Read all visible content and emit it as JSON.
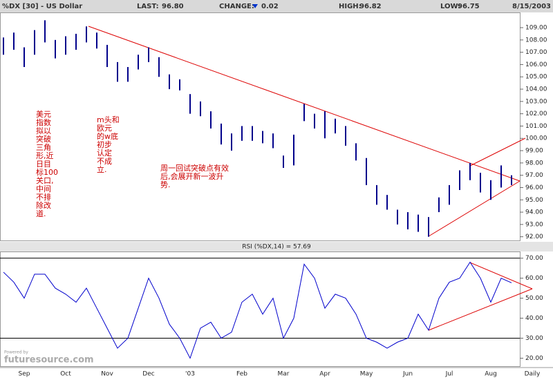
{
  "header": {
    "symbol": "%DX [30] - US Dollar",
    "last_label": "LAST:",
    "last": "96.80",
    "change_label": "CHANGE:",
    "change": "0.02",
    "high_label": "HIGH:",
    "high": "96.82",
    "low_label": "LOW:",
    "low": "96.75",
    "date": "8/15/2003"
  },
  "branding": {
    "powered": "Powered by",
    "name": "futuresource.com"
  },
  "chart_data": [
    {
      "type": "ohlc",
      "period": "Daily",
      "color": "#00008b",
      "trend_color": "#dd0000",
      "categories": [
        null,
        null,
        "Sep",
        null,
        null,
        null,
        "Oct",
        null,
        null,
        null,
        "Nov",
        null,
        null,
        null,
        "Dec",
        null,
        null,
        null,
        "'03",
        null,
        null,
        null,
        null,
        "Feb",
        null,
        null,
        null,
        "Mar",
        null,
        null,
        null,
        "Apr",
        null,
        null,
        null,
        "May",
        null,
        null,
        null,
        "Jun",
        null,
        null,
        null,
        "Jul",
        null,
        null,
        null,
        "Aug",
        null,
        null
      ],
      "series": [
        {
          "name": "High",
          "values": [
            108.2,
            108.6,
            107.4,
            108.8,
            109.6,
            108.0,
            108.3,
            108.5,
            109.1,
            108.6,
            107.6,
            106.2,
            105.8,
            106.8,
            107.4,
            106.6,
            105.2,
            104.8,
            103.6,
            103.0,
            102.2,
            101.2,
            100.4,
            101.0,
            101.0,
            100.6,
            100.4,
            98.6,
            100.3,
            102.8,
            102.0,
            102.2,
            101.6,
            101.0,
            99.6,
            98.4,
            96.2,
            95.4,
            94.2,
            94.0,
            93.8,
            93.6,
            95.2,
            96.2,
            97.4,
            98.0,
            97.2,
            96.6,
            97.8,
            97.0
          ]
        },
        {
          "name": "Low",
          "values": [
            106.8,
            107.2,
            105.8,
            106.8,
            107.8,
            106.5,
            106.8,
            107.2,
            107.8,
            107.3,
            105.8,
            104.6,
            104.6,
            105.6,
            106.2,
            105.0,
            104.0,
            103.9,
            102.0,
            101.8,
            100.8,
            99.5,
            99.0,
            99.8,
            99.8,
            99.6,
            99.2,
            97.6,
            97.8,
            101.4,
            100.8,
            100.0,
            100.4,
            99.4,
            98.2,
            96.2,
            94.6,
            94.2,
            93.0,
            92.6,
            92.4,
            92.0,
            94.0,
            94.6,
            95.8,
            96.6,
            95.6,
            95.0,
            96.0,
            96.2
          ]
        }
      ],
      "ylim": [
        91.7,
        109.9
      ],
      "yticks": [
        {
          "value": 92,
          "label": "92.00"
        },
        {
          "value": 93,
          "label": "93.00"
        },
        {
          "value": 94,
          "label": "94.00"
        },
        {
          "value": 95,
          "label": "95.00"
        },
        {
          "value": 96,
          "label": "96.00"
        },
        {
          "value": 97,
          "label": "97.00"
        },
        {
          "value": 98,
          "label": "98.00"
        },
        {
          "value": 99,
          "label": "99.00"
        },
        {
          "value": 100,
          "label": "100.00"
        },
        {
          "value": 101,
          "label": "101.00"
        },
        {
          "value": 102,
          "label": "102.00"
        },
        {
          "value": 103,
          "label": "103.00"
        },
        {
          "value": 104,
          "label": "104.00"
        },
        {
          "value": 105,
          "label": "105.00"
        },
        {
          "value": 106,
          "label": "106.00"
        },
        {
          "value": 107,
          "label": "107.00"
        },
        {
          "value": 108,
          "label": "108.00"
        },
        {
          "value": 109,
          "label": "109.00"
        }
      ],
      "annotations": [
        {
          "lines": [
            "美元",
            "指数",
            "拟以",
            "突破",
            "三角",
            "形,近",
            "日目",
            "标100",
            "关口,",
            "中间",
            "不排",
            "除改",
            "道."
          ]
        },
        {
          "lines": [
            "m头和",
            "欧元",
            "的w底",
            "初步",
            "认定",
            "不成",
            "立."
          ]
        },
        {
          "lines": [
            "周一回试突破点有效",
            "后,会展开新一波升",
            "势."
          ]
        }
      ]
    },
    {
      "type": "line",
      "title": "RSI (%DX,14) = 57.69",
      "color": "#0000cc",
      "values": [
        63,
        58,
        50,
        62,
        62,
        55,
        52,
        48,
        55,
        45,
        35,
        25,
        30,
        45,
        60,
        50,
        37,
        30,
        20,
        35,
        38,
        30,
        33,
        48,
        52,
        42,
        50,
        30,
        40,
        67,
        60,
        45,
        52,
        50,
        42,
        30,
        28,
        25,
        28,
        30,
        42,
        34,
        50,
        58,
        60,
        68,
        60,
        48,
        60,
        57.69
      ],
      "ylim": [
        16,
        73
      ],
      "yticks": [
        {
          "value": 20,
          "label": "20.00"
        },
        {
          "value": 30,
          "label": "30.00"
        },
        {
          "value": 40,
          "label": "40.00"
        },
        {
          "value": 50,
          "label": "50.00"
        },
        {
          "value": 60,
          "label": "60.00"
        },
        {
          "value": 70,
          "label": "70.00"
        }
      ],
      "reference_lines": [
        30,
        70
      ]
    }
  ]
}
